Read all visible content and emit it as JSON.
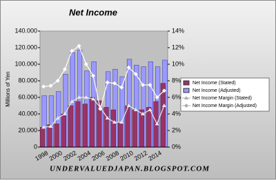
{
  "chart_data": {
    "type": "bar-line",
    "title": "Net Income",
    "ylabel": "Millions of Yen",
    "footer": "UNDERVALUEDJAPAN.BLOGSPOT.COM",
    "categories": [
      "1998",
      null,
      "2000",
      null,
      "2002",
      null,
      "2004",
      null,
      "2006",
      null,
      "2008",
      null,
      "2010",
      null,
      "2012",
      null,
      "2014",
      null
    ],
    "series": [
      {
        "name": "Net Income (Stated)",
        "color": "#993366",
        "kind": "bar",
        "values": [
          24000,
          27000,
          28000,
          40000,
          50000,
          55000,
          52000,
          60000,
          56000,
          48000,
          45000,
          30000,
          50000,
          45000,
          45000,
          48000,
          55000,
          77000
        ]
      },
      {
        "name": "Net Income (Adjusted)",
        "color": "#9999ff",
        "kind": "bar",
        "values": [
          62000,
          62000,
          67000,
          88000,
          114000,
          117000,
          92000,
          103000,
          47000,
          91000,
          94000,
          85000,
          106000,
          99000,
          97000,
          103000,
          97000,
          105000
        ]
      },
      {
        "name": "Net Income Margin (Stated)",
        "color": "#e8e8e8",
        "kind": "line",
        "marker": "triangle",
        "axis": "y2",
        "values": [
          2.4,
          2.5,
          3.5,
          4.0,
          5.5,
          6.0,
          6.0,
          5.8,
          4.8,
          3.5,
          3.0,
          3.0,
          5.0,
          4.5,
          4.0,
          4.5,
          2.8,
          5.0
        ]
      },
      {
        "name": "Net Income Margin (Adjusted)",
        "color": "#ffffff",
        "kind": "line",
        "marker": "diamond",
        "axis": "y2",
        "values": [
          7.3,
          7.4,
          8.0,
          9.4,
          11.6,
          12.2,
          10.0,
          8.6,
          4.6,
          7.8,
          7.7,
          7.2,
          9.6,
          8.8,
          7.5,
          7.5,
          6.0,
          6.8
        ]
      }
    ],
    "ylim": [
      0,
      140000
    ],
    "yticks": [
      0,
      {
        "value": 20000,
        "label": "20.000"
      },
      {
        "value": 40000,
        "label": "40.000"
      },
      {
        "value": 60000,
        "label": "60.000"
      },
      {
        "value": 80000,
        "label": "80.000"
      },
      {
        "value": 100000,
        "label": "100.000"
      },
      {
        "value": 120000,
        "label": "120.000"
      },
      {
        "value": 140000,
        "label": "140.000"
      }
    ],
    "y2lim": [
      0,
      14
    ],
    "y2ticks": [
      {
        "value": 0,
        "label": "0%"
      },
      {
        "value": 2,
        "label": "2%"
      },
      {
        "value": 4,
        "label": "4%"
      },
      {
        "value": 6,
        "label": "6%"
      },
      {
        "value": 8,
        "label": "8%"
      },
      {
        "value": 10,
        "label": "10%"
      },
      {
        "value": 12,
        "label": "12%"
      },
      {
        "value": 14,
        "label": "14%"
      }
    ],
    "plot_background": "#c0c0c0",
    "legend": "right"
  }
}
